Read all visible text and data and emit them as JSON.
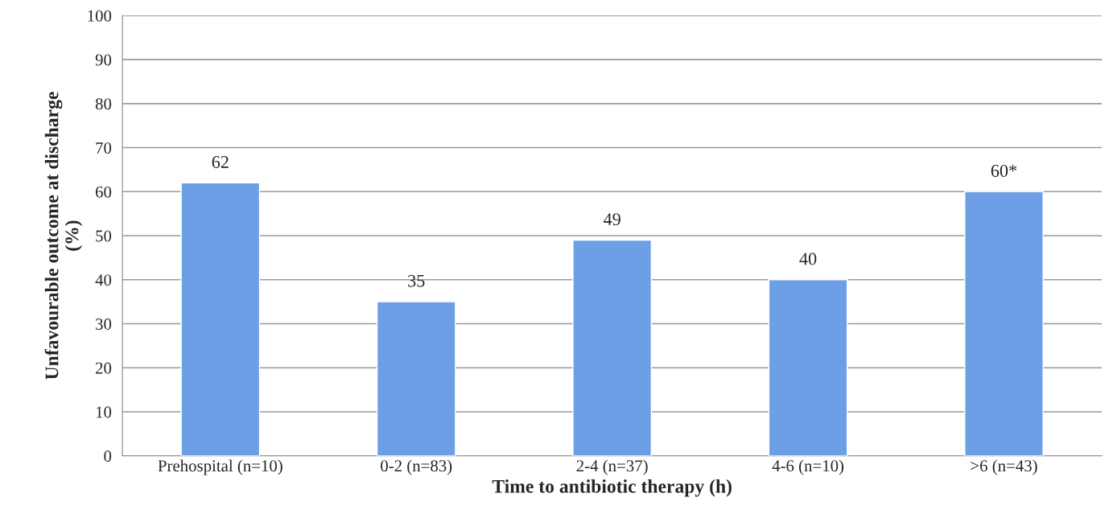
{
  "chart_data": {
    "type": "bar",
    "xlabel": "Time to antibiotic therapy (h)",
    "ylabel": "Unfavourable outcome at discharge\n(%)",
    "categories": [
      "Prehospital (n=10)",
      "0-2 (n=83)",
      "2-4 (n=37)",
      "4-6 (n=10)",
      ">6 (n=43)"
    ],
    "values": [
      62,
      35,
      49,
      40,
      60
    ],
    "value_labels": [
      "62",
      "35",
      "49",
      "40",
      "60*"
    ],
    "color": "#6c9fe6",
    "ylim": [
      0,
      100
    ],
    "yticks": [
      0,
      10,
      20,
      30,
      40,
      50,
      60,
      70,
      80,
      90,
      100
    ],
    "grid": "y"
  }
}
